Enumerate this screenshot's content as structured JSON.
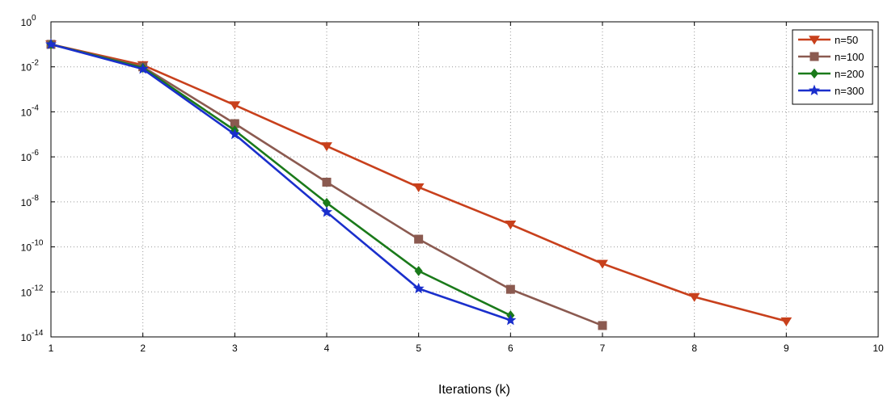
{
  "chart_data": {
    "type": "line",
    "title": "",
    "xlabel": "Iterations (k)",
    "ylabel": "",
    "xlim": [
      1,
      10
    ],
    "ylim_log10": [
      -14,
      0
    ],
    "y_scale": "log",
    "grid": true,
    "legend_position": "top-right",
    "x_ticks": [
      1,
      2,
      3,
      4,
      5,
      6,
      7,
      8,
      9,
      10
    ],
    "y_tick_exponents": [
      0,
      -2,
      -4,
      -6,
      -8,
      -10,
      -12,
      -14
    ],
    "y_tick_base": "10",
    "series": [
      {
        "name": "n=50",
        "color": "#c8401c",
        "marker": "triangle-down",
        "x": [
          1,
          2,
          3,
          4,
          5,
          6,
          7,
          8,
          9
        ],
        "y": [
          0.1,
          0.012,
          0.0002,
          3e-06,
          4.5e-08,
          1e-09,
          1.8e-11,
          6e-13,
          5e-14
        ]
      },
      {
        "name": "n=100",
        "color": "#8b5a50",
        "marker": "square",
        "x": [
          1,
          2,
          3,
          4,
          5,
          6,
          7
        ],
        "y": [
          0.1,
          0.01,
          3e-05,
          7.5e-08,
          2.2e-10,
          1.3e-12,
          3.2e-14
        ]
      },
      {
        "name": "n=200",
        "color": "#1a7a1a",
        "marker": "diamond",
        "x": [
          1,
          2,
          3,
          4,
          5,
          6
        ],
        "y": [
          0.1,
          0.009,
          1.5e-05,
          9e-09,
          8.5e-12,
          9e-14
        ]
      },
      {
        "name": "n=300",
        "color": "#1a2fcc",
        "marker": "star",
        "x": [
          1,
          2,
          3,
          4,
          5,
          6
        ],
        "y": [
          0.1,
          0.008,
          1e-05,
          3.5e-09,
          1.4e-12,
          5.5e-14
        ]
      }
    ]
  }
}
